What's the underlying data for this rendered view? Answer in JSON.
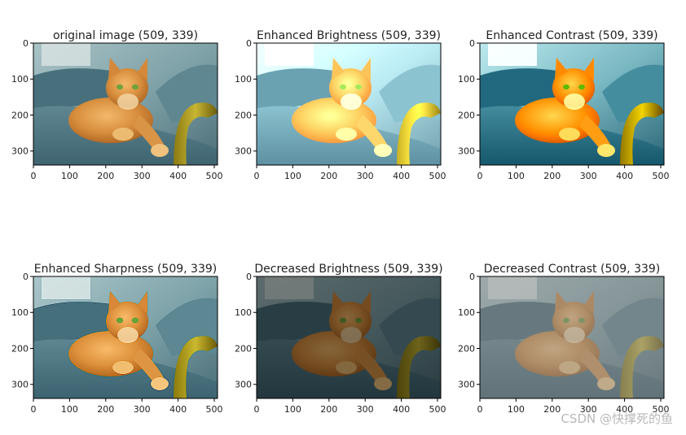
{
  "figure": {
    "watermark": "CSDN @快撑死的鱼"
  },
  "chart_data": [
    {
      "type": "image",
      "title": "original image (509, 339)",
      "xticks": [
        0,
        100,
        200,
        300,
        400,
        500
      ],
      "yticks": [
        0,
        100,
        200,
        300
      ],
      "xlim": [
        0,
        509
      ],
      "ylim": [
        339,
        0
      ],
      "adjust": {
        "brightness": 1.0,
        "contrast": 1.0,
        "saturate": 1.0,
        "sharp": false
      }
    },
    {
      "type": "image",
      "title": "Enhanced Brightness (509, 339)",
      "xticks": [
        0,
        100,
        200,
        300,
        400,
        500
      ],
      "yticks": [
        0,
        100,
        200,
        300
      ],
      "xlim": [
        0,
        509
      ],
      "ylim": [
        339,
        0
      ],
      "adjust": {
        "brightness": 1.45,
        "contrast": 1.0,
        "saturate": 0.95,
        "sharp": false
      }
    },
    {
      "type": "image",
      "title": "Enhanced Contrast (509, 339)",
      "xticks": [
        0,
        100,
        200,
        300,
        400,
        500
      ],
      "yticks": [
        0,
        100,
        200,
        300
      ],
      "xlim": [
        0,
        509
      ],
      "ylim": [
        339,
        0
      ],
      "adjust": {
        "brightness": 1.0,
        "contrast": 1.55,
        "saturate": 1.15,
        "sharp": false
      }
    },
    {
      "type": "image",
      "title": "Enhanced Sharpness (509, 339)",
      "xticks": [
        0,
        100,
        200,
        300,
        400,
        500
      ],
      "yticks": [
        0,
        100,
        200,
        300
      ],
      "xlim": [
        0,
        509
      ],
      "ylim": [
        339,
        0
      ],
      "adjust": {
        "brightness": 1.0,
        "contrast": 1.05,
        "saturate": 1.0,
        "sharp": true
      }
    },
    {
      "type": "image",
      "title": "Decreased Brightness (509, 339)",
      "xticks": [
        0,
        100,
        200,
        300,
        400,
        500
      ],
      "yticks": [
        0,
        100,
        200,
        300
      ],
      "xlim": [
        0,
        509
      ],
      "ylim": [
        339,
        0
      ],
      "adjust": {
        "brightness": 0.55,
        "contrast": 1.0,
        "saturate": 1.0,
        "sharp": false
      }
    },
    {
      "type": "image",
      "title": "Decreased Contrast (509, 339)",
      "xticks": [
        0,
        100,
        200,
        300,
        400,
        500
      ],
      "yticks": [
        0,
        100,
        200,
        300
      ],
      "xlim": [
        0,
        509
      ],
      "ylim": [
        339,
        0
      ],
      "adjust": {
        "brightness": 1.05,
        "contrast": 0.55,
        "saturate": 0.8,
        "sharp": false
      }
    }
  ]
}
